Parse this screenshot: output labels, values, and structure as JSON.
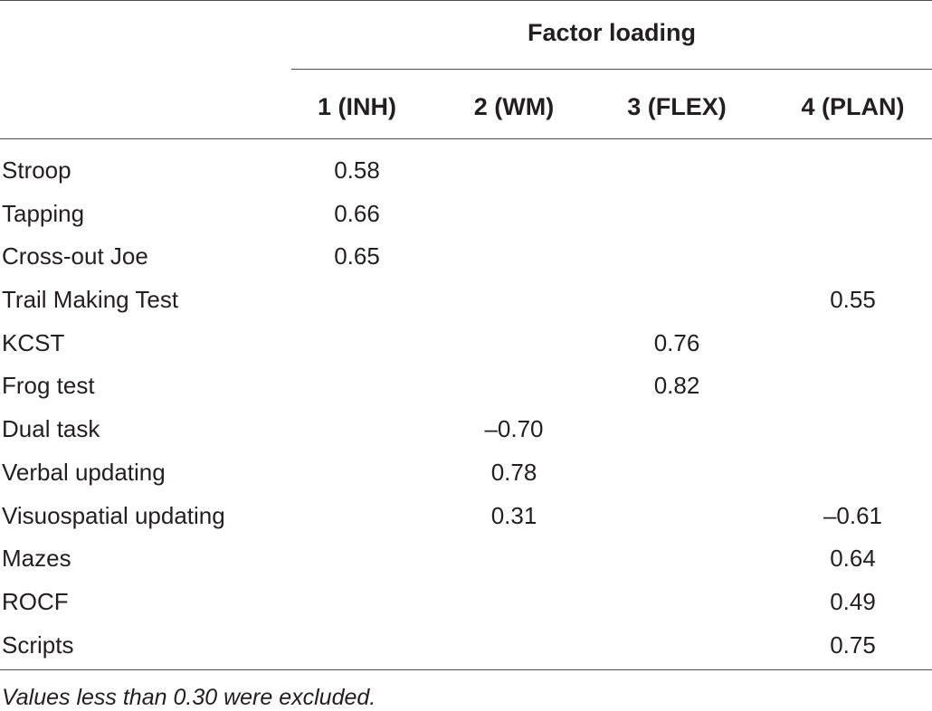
{
  "table": {
    "group_header": "Factor loading",
    "columns": [
      "1 (INH)",
      "2 (WM)",
      "3 (FLEX)",
      "4 (PLAN)"
    ],
    "rows": [
      {
        "label": "Stroop",
        "values": [
          "0.58",
          "",
          "",
          ""
        ]
      },
      {
        "label": "Tapping",
        "values": [
          "0.66",
          "",
          "",
          ""
        ]
      },
      {
        "label": "Cross-out Joe",
        "values": [
          "0.65",
          "",
          "",
          ""
        ]
      },
      {
        "label": "Trail Making Test",
        "values": [
          "",
          "",
          "",
          "0.55"
        ]
      },
      {
        "label": "KCST",
        "values": [
          "",
          "",
          "0.76",
          ""
        ]
      },
      {
        "label": "Frog test",
        "values": [
          "",
          "",
          "0.82",
          ""
        ]
      },
      {
        "label": "Dual task",
        "values": [
          "",
          "–0.70",
          "",
          ""
        ]
      },
      {
        "label": "Verbal updating",
        "values": [
          "",
          "0.78",
          "",
          ""
        ]
      },
      {
        "label": "Visuospatial updating",
        "values": [
          "",
          "0.31",
          "",
          "–0.61"
        ]
      },
      {
        "label": "Mazes",
        "values": [
          "",
          "",
          "",
          "0.64"
        ]
      },
      {
        "label": "ROCF",
        "values": [
          "",
          "",
          "",
          "0.49"
        ]
      },
      {
        "label": "Scripts",
        "values": [
          "",
          "",
          "",
          "0.75"
        ]
      }
    ],
    "note": "Values less than 0.30 were excluded."
  }
}
